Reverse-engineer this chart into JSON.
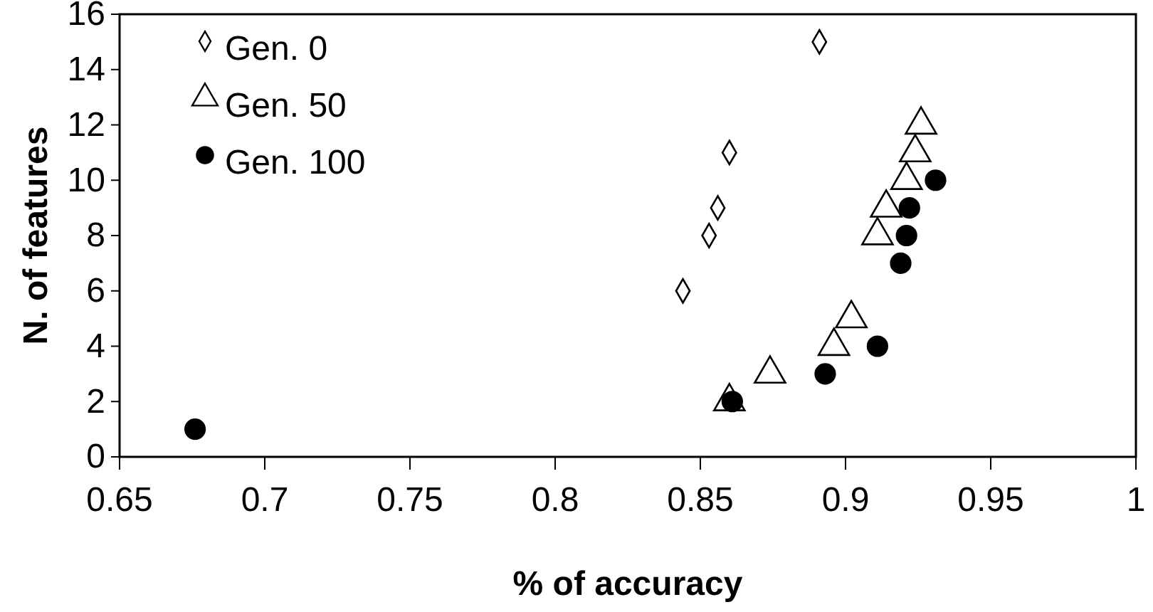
{
  "chart_data": {
    "type": "scatter",
    "xlabel": "% of accuracy",
    "ylabel": "N. of features",
    "xlim": [
      0.65,
      1
    ],
    "xticks": [
      0.65,
      0.7,
      0.75,
      0.8,
      0.85,
      0.9,
      0.95,
      1
    ],
    "ylim": [
      0,
      16
    ],
    "yticks": [
      0,
      2,
      4,
      6,
      8,
      10,
      12,
      14,
      16
    ],
    "grid": false,
    "legend": "top left",
    "series": [
      {
        "name": "Gen. 0",
        "marker": "diamond",
        "color": "#ffffff",
        "x": [
          0.891,
          0.86,
          0.856,
          0.853,
          0.844
        ],
        "values": [
          15,
          11,
          9,
          8,
          6
        ]
      },
      {
        "name": "Gen. 50",
        "marker": "triangle",
        "color": "#ffffff",
        "x": [
          0.926,
          0.924,
          0.921,
          0.914,
          0.911,
          0.902,
          0.896,
          0.874,
          0.86
        ],
        "values": [
          12,
          11,
          10,
          9,
          8,
          5,
          4,
          3,
          2
        ]
      },
      {
        "name": "Gen. 100",
        "marker": "circle",
        "color": "#000000",
        "x": [
          0.931,
          0.922,
          0.921,
          0.919,
          0.911,
          0.893,
          0.861,
          0.676
        ],
        "values": [
          10,
          9,
          8,
          7,
          4,
          3,
          2,
          1
        ]
      }
    ]
  }
}
